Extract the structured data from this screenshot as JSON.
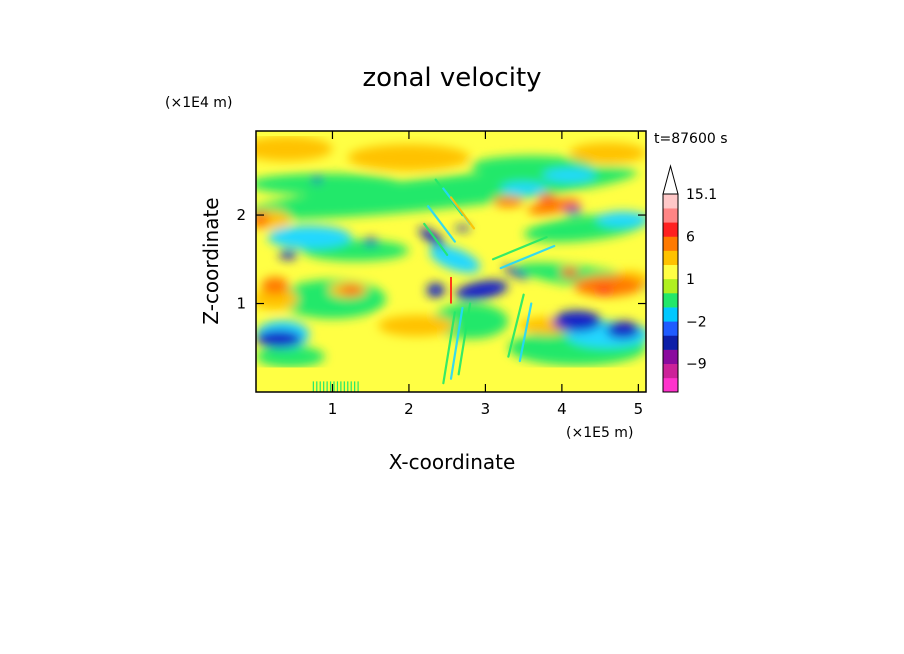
{
  "chart_data": {
    "type": "heatmap",
    "title": "zonal velocity",
    "xlabel": "X-coordinate",
    "ylabel": "Z-coordinate",
    "x_unit": "(×1E5 m)",
    "y_unit": "(×1E4 m)",
    "time_label": "t=87600 s",
    "xlim": [
      0,
      5.1
    ],
    "ylim": [
      0,
      2.95
    ],
    "x_ticks": [
      1,
      2,
      3,
      4,
      5
    ],
    "y_ticks": [
      1,
      2
    ],
    "colorbar": {
      "levels": [
        -15,
        -12,
        -9,
        -6,
        -3,
        -2,
        -1,
        0,
        1,
        2,
        3,
        6,
        9,
        12,
        15.1
      ],
      "labels": [
        {
          "value": 15.1,
          "text": "15.1"
        },
        {
          "value": 6,
          "text": "6"
        },
        {
          "value": 1,
          "text": "1"
        },
        {
          "value": -2,
          "text": "−2"
        },
        {
          "value": -9,
          "text": "−9"
        }
      ],
      "colors": [
        "#ff33cc",
        "#cc2299",
        "#8a0b9e",
        "#0d1fa8",
        "#1f5cff",
        "#00c8ff",
        "#22e86a",
        "#b0f020",
        "#ffff44",
        "#ffc200",
        "#ff7a00",
        "#ff2020",
        "#ff8585",
        "#ffc8c8"
      ],
      "extend_top": true
    },
    "field_colors": {
      "strong_neg": "#1822c8",
      "neg": "#22d8ff",
      "weak_neg": "#22e86a",
      "near_zero": "#ffff44",
      "weak_pos": "#ffc200",
      "pos": "#ff7a00",
      "strong_pos": "#ff3a1a"
    }
  }
}
